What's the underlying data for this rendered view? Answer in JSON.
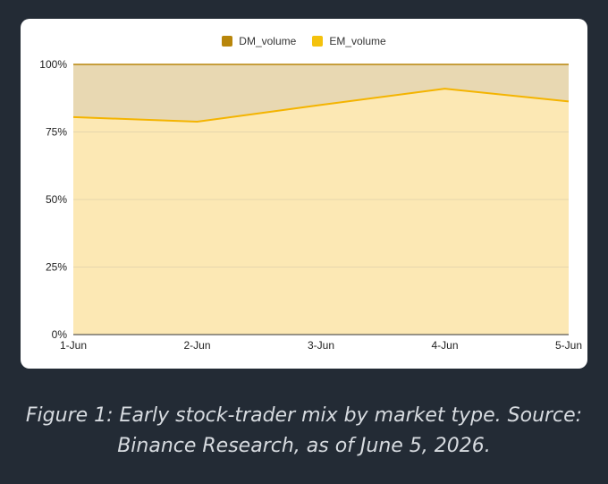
{
  "caption": {
    "line1": "Figure 1: Early stock-trader mix by market type. Source:",
    "line2": "Binance Research, as of June 5, 2026."
  },
  "chart_data": {
    "type": "area",
    "stacked": "percent",
    "categories": [
      "1-Jun",
      "2-Jun",
      "3-Jun",
      "4-Jun",
      "5-Jun"
    ],
    "series": [
      {
        "name": "EM_volume",
        "values": [
          80.5,
          78.8,
          85.0,
          91.0,
          86.3
        ],
        "color": "#f4b400",
        "fill": "#fce8b4"
      },
      {
        "name": "DM_volume",
        "values": [
          19.5,
          21.2,
          15.0,
          9.0,
          13.7
        ],
        "color": "#b8860b",
        "fill": "#e8d8b2"
      }
    ],
    "legend_order": [
      "DM_volume",
      "EM_volume"
    ],
    "legend_colors": {
      "DM_volume": "#b8860b",
      "EM_volume": "#f4c20d"
    },
    "yticks": [
      "0%",
      "25%",
      "50%",
      "75%",
      "100%"
    ],
    "ylim": [
      0,
      100
    ],
    "legend_position": "top",
    "grid": true
  }
}
